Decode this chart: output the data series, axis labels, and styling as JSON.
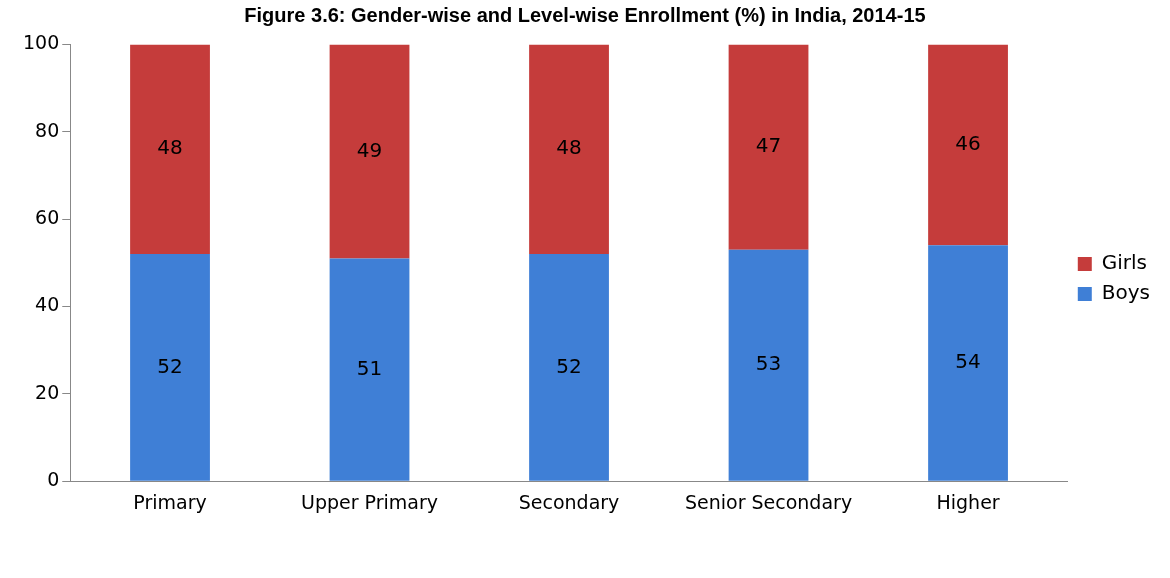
{
  "chart_data": {
    "type": "bar",
    "title": "Figure 3.6: Gender-wise and Level-wise Enrollment (%) in India, 2014-15",
    "categories": [
      "Primary",
      "Upper Primary",
      "Secondary",
      "Senior Secondary",
      "Higher"
    ],
    "series": [
      {
        "name": "Boys",
        "color": "#3f7fd6",
        "values": [
          52,
          51,
          52,
          53,
          54
        ]
      },
      {
        "name": "Girls",
        "color": "#c53c3b",
        "values": [
          48,
          49,
          48,
          47,
          46
        ]
      }
    ],
    "stacked": true,
    "ylim": [
      0,
      100
    ],
    "yticks": [
      0,
      20,
      40,
      60,
      80,
      100
    ],
    "grid": false,
    "legend": "right",
    "data_labels": true
  }
}
